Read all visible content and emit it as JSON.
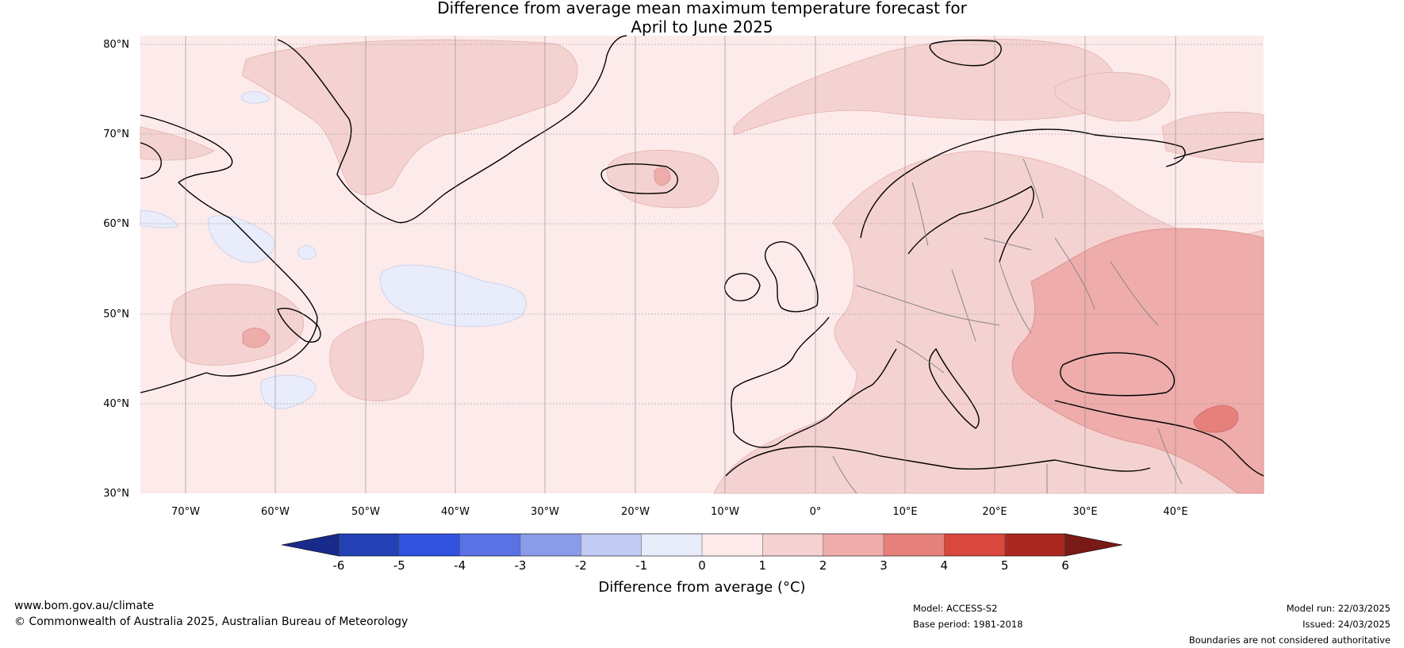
{
  "title": {
    "line1": "Difference from average mean maximum temperature forecast for",
    "line2": "April to June 2025"
  },
  "map": {
    "lat_labels": [
      "80°N",
      "70°N",
      "60°N",
      "50°N",
      "40°N",
      "30°N"
    ],
    "lon_labels": [
      "70°W",
      "60°W",
      "50°W",
      "40°W",
      "30°W",
      "20°W",
      "10°W",
      "0°",
      "10°E",
      "20°E",
      "30°E",
      "40°E"
    ],
    "lat_range": [
      30,
      80
    ],
    "lon_range": [
      -75,
      50
    ],
    "background_anomaly_class": "0 to 1"
  },
  "colorbar": {
    "label": "Difference from average (°C)",
    "ticks": [
      "-6",
      "-5",
      "-4",
      "-3",
      "-2",
      "-1",
      "0",
      "1",
      "2",
      "3",
      "4",
      "5",
      "6"
    ],
    "colors": [
      "#1a2a8a",
      "#2340b5",
      "#3152df",
      "#5a72e4",
      "#8a9ce9",
      "#c1caf3",
      "#e8ecfb",
      "#fcebea",
      "#f4d2d1",
      "#eeacab",
      "#e5807b",
      "#d9473d",
      "#ab2822",
      "#7a1a17"
    ]
  },
  "footer": {
    "website": "www.bom.gov.au/climate",
    "copyright": "© Commonwealth of Australia 2025, Australian Bureau of Meteorology",
    "model": "Model: ACCESS-S2",
    "base_period": "Base period: 1981-2018",
    "model_run": "Model run: 22/03/2025",
    "issued": "Issued: 24/03/2025",
    "disclaimer": "Boundaries are not considered authoritative"
  }
}
